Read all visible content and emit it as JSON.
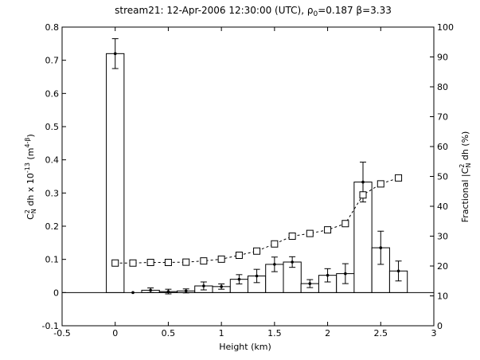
{
  "chart_data": {
    "type": "bar",
    "title_main": "stream21: 12-Apr-2006 12:30:00 (UTC), ",
    "title_rho": "ρ",
    "title_rho_sub": "0",
    "title_rho_val": "=0.187 β=3.33",
    "xlabel": "Height (km)",
    "ylabel_left": {
      "C": "C",
      "sup2": "2",
      "subN": "N",
      "mid": " dh x 10",
      "exp": "-13",
      "unit_open": " (m",
      "unit_exp": "4-β",
      "unit_close": ")"
    },
    "ylabel_right": {
      "pre": "Fractional |C",
      "sup2": "2",
      "subN": "N",
      "post": " dh  (%)"
    },
    "xlim": [
      -0.5,
      3
    ],
    "ylim_left": [
      -0.1,
      0.8
    ],
    "ylim_right": [
      0,
      100
    ],
    "x_ticks": [
      "-0.5",
      "0",
      "0.5",
      "1",
      "1.5",
      "2",
      "2.5",
      "3"
    ],
    "y_left_ticks": [
      "-0.1",
      "0",
      "0.1",
      "0.2",
      "0.3",
      "0.4",
      "0.5",
      "0.6",
      "0.7",
      "0.8"
    ],
    "y_right_ticks": [
      "0",
      "10",
      "20",
      "30",
      "40",
      "50",
      "60",
      "70",
      "80",
      "90",
      "100"
    ],
    "grid": false,
    "bars": {
      "axis": "left",
      "width_km": 0.167,
      "x": [
        0,
        0.167,
        0.333,
        0.5,
        0.667,
        0.833,
        1.0,
        1.167,
        1.333,
        1.5,
        1.667,
        1.833,
        2.0,
        2.167,
        2.333,
        2.5,
        2.667
      ],
      "values": [
        0.72,
        0.0,
        0.007,
        0.003,
        0.005,
        0.02,
        0.018,
        0.04,
        0.05,
        0.085,
        0.092,
        0.027,
        0.052,
        0.057,
        0.333,
        0.135,
        0.065
      ],
      "err": [
        0.045,
        0.0,
        0.007,
        0.007,
        0.006,
        0.012,
        0.008,
        0.014,
        0.02,
        0.022,
        0.016,
        0.012,
        0.02,
        0.03,
        0.06,
        0.05,
        0.03
      ]
    },
    "cumulative": {
      "axis": "right",
      "x": [
        0,
        0.167,
        0.333,
        0.5,
        0.667,
        0.833,
        1.0,
        1.167,
        1.333,
        1.5,
        1.667,
        1.833,
        2.0,
        2.167,
        2.333,
        2.5,
        2.667
      ],
      "values": [
        21,
        21,
        21.2,
        21.2,
        21.3,
        21.7,
        22.3,
        23.6,
        25,
        27.4,
        30,
        30.9,
        32.1,
        34.2,
        43.8,
        47.5,
        49.5
      ]
    }
  }
}
